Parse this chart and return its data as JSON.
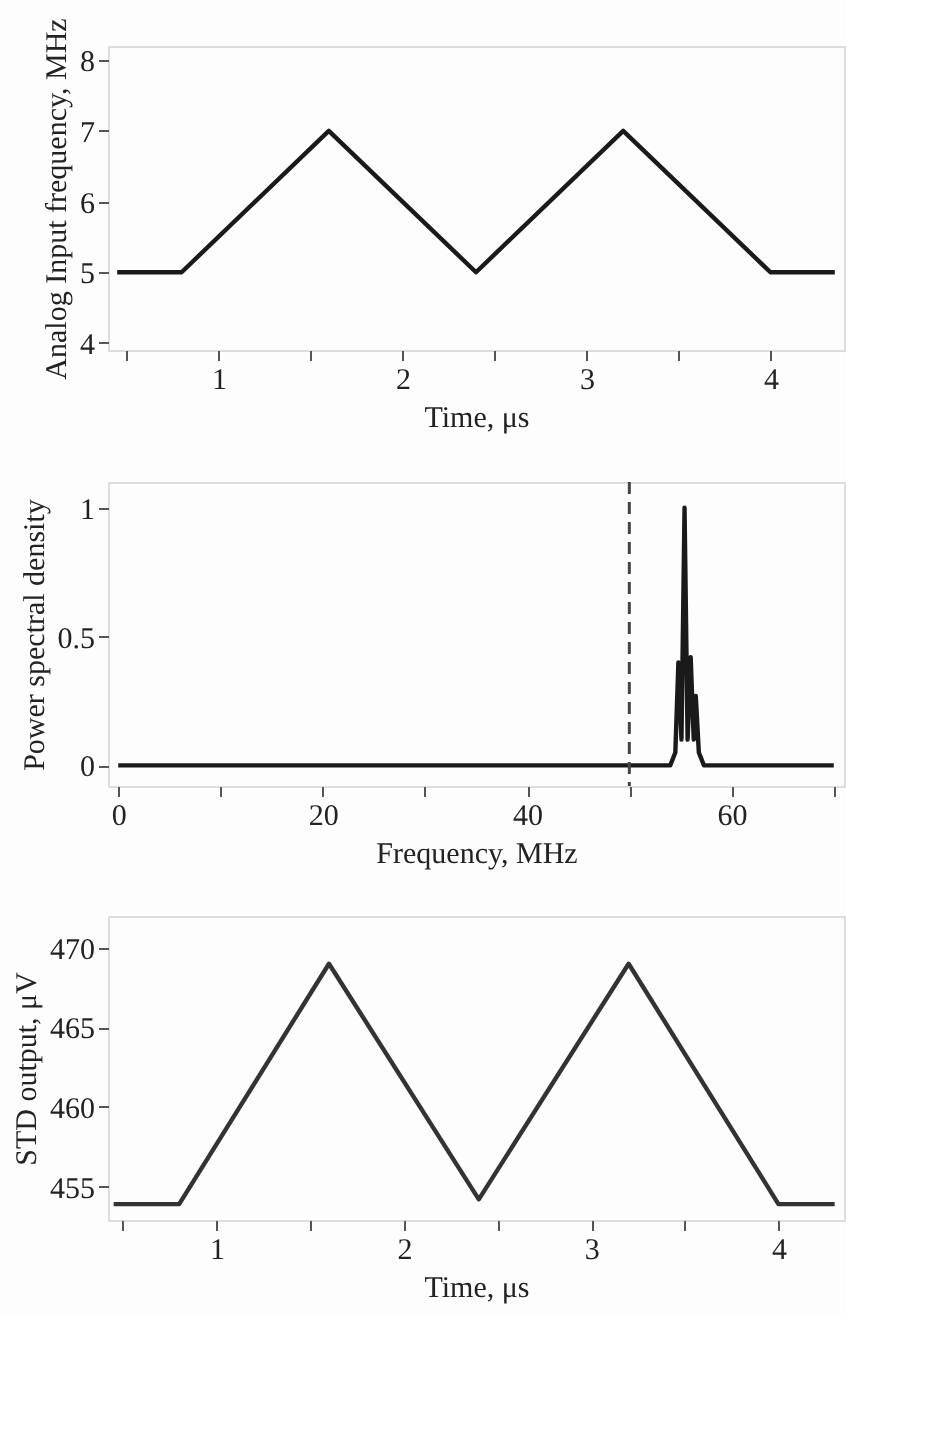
{
  "chart_data": [
    {
      "type": "line",
      "xlabel": "Time, μs",
      "ylabel": "Analog Input frequency, MHz",
      "xlim": [
        0.4,
        4.4
      ],
      "ylim": [
        3.9,
        8.2
      ],
      "xticks": [
        {
          "value": 0.5,
          "label": null
        },
        1,
        {
          "value": 1.5,
          "label": null
        },
        2,
        {
          "value": 2.5,
          "label": null
        },
        3,
        {
          "value": 3.5,
          "label": null
        },
        4
      ],
      "yticks": [
        4,
        5,
        6,
        7,
        8
      ],
      "grid": false,
      "line_style": "solid",
      "marker": "none",
      "series": [
        {
          "color": "#1a1a1a",
          "x": [
            0.45,
            0.8,
            1.6,
            2.4,
            3.2,
            4.0,
            4.35
          ],
          "values": [
            5,
            5,
            7,
            5,
            7,
            5,
            5
          ]
        }
      ]
    },
    {
      "type": "line",
      "xlabel": "Frequency, MHz",
      "ylabel": "Power spectral density",
      "xlim": [
        -1,
        71
      ],
      "ylim": [
        -0.08,
        1.1
      ],
      "xticks": [
        0,
        {
          "value": 10,
          "label": null
        },
        20,
        {
          "value": 30,
          "label": null
        },
        40,
        {
          "value": 50,
          "label": null
        },
        60,
        {
          "value": 70,
          "label": null
        }
      ],
      "yticks": [
        0,
        0.5,
        1
      ],
      "grid": false,
      "line_style": "solid",
      "marker": "none",
      "ref_lines": [
        {
          "axis": "x",
          "value": 50,
          "label": null,
          "color": "#444444",
          "line_style": "dashed"
        }
      ],
      "series": [
        {
          "color": "#1a1a1a",
          "x": [
            0,
            54,
            54.5,
            54.8,
            55.1,
            55.4,
            55.7,
            56.0,
            56.3,
            56.5,
            56.8,
            57.3,
            70
          ],
          "values": [
            0,
            0,
            0.05,
            0.4,
            0.1,
            1,
            0.1,
            0.42,
            0.1,
            0.27,
            0.05,
            0,
            0
          ]
        }
      ]
    },
    {
      "type": "line",
      "xlabel": "Time, μs",
      "ylabel": "STD output, μV",
      "xlim": [
        0.42,
        4.35
      ],
      "ylim": [
        452.9,
        472
      ],
      "xticks": [
        {
          "value": 0.5,
          "label": null
        },
        1,
        {
          "value": 1.5,
          "label": null
        },
        2,
        {
          "value": 2.5,
          "label": null
        },
        3,
        {
          "value": 3.5,
          "label": null
        },
        4
      ],
      "yticks": [
        455,
        460,
        465,
        470
      ],
      "grid": false,
      "line_style": "solid",
      "marker": "none",
      "series": [
        {
          "color": "#333333",
          "x": [
            0.45,
            0.8,
            1.6,
            2.4,
            3.2,
            4.0,
            4.3
          ],
          "values": [
            453.9,
            453.9,
            469,
            454.2,
            469,
            453.9,
            453.9
          ]
        }
      ]
    }
  ]
}
